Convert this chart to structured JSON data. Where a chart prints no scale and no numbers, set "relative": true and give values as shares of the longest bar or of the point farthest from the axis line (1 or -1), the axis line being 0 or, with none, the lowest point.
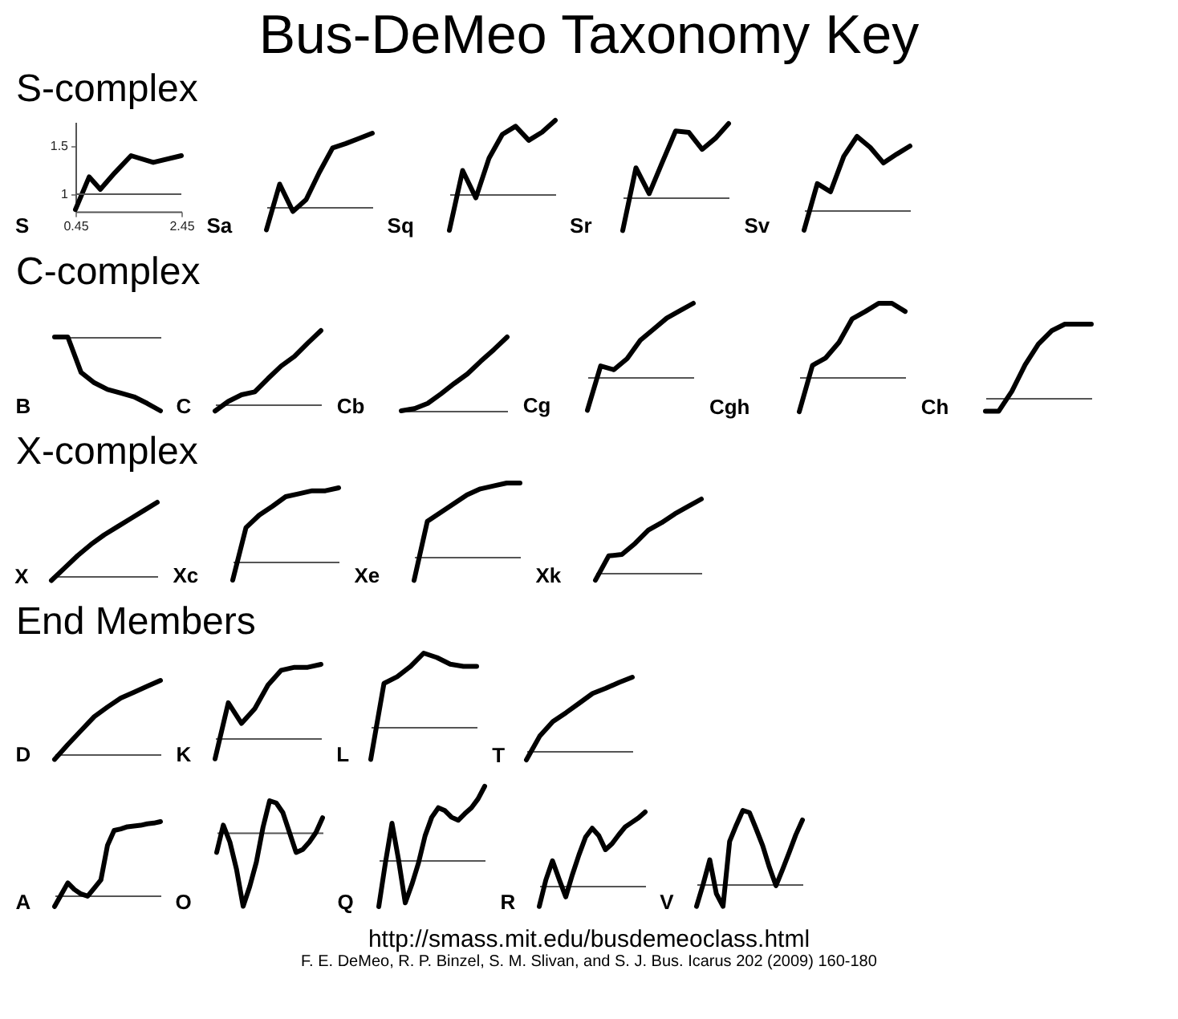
{
  "chart_data": [
    {
      "type": "other",
      "title": "Bus-DeMeo Taxonomy Key"
    },
    {
      "type": "other",
      "title": "S-complex"
    },
    {
      "type": "line",
      "title": "S",
      "xlim": [
        0.45,
        2.45
      ],
      "ylim": [
        0.82,
        1.75
      ],
      "xticks": [
        0.45,
        2.45
      ],
      "yticks": [
        1,
        1.5
      ],
      "ref_lines": [
        {
          "axis": "y",
          "value": 1
        }
      ],
      "series": [
        {
          "color": "#000000",
          "x": [
            0.45,
            0.71,
            0.92,
            1.19,
            1.5,
            1.92,
            2.45
          ],
          "values": [
            0.84,
            1.18,
            1.05,
            1.22,
            1.4,
            1.33,
            1.4
          ]
        }
      ]
    },
    {
      "type": "line",
      "title": "Sa",
      "relative": true,
      "categories": [
        null,
        null,
        null,
        null,
        null,
        null,
        null,
        null,
        null
      ],
      "series": [
        {
          "color": "#000000",
          "values": [
            -0.31,
            0.31,
            -0.06,
            0.1,
            0.47,
            0.8,
            0.86,
            0.93,
            1
          ]
        }
      ]
    },
    {
      "type": "line",
      "title": "Sq",
      "relative": true,
      "categories": [
        null,
        null,
        null,
        null,
        null,
        null,
        null,
        null,
        null
      ],
      "series": [
        {
          "color": "#000000",
          "values": [
            -0.49,
            0.32,
            -0.05,
            0.49,
            0.81,
            0.92,
            0.73,
            0.84,
            1
          ]
        }
      ]
    },
    {
      "type": "line",
      "title": "Sr",
      "relative": true,
      "categories": [
        null,
        null,
        null,
        null,
        null,
        null,
        null,
        null,
        null
      ],
      "series": [
        {
          "color": "#000000",
          "values": [
            -0.45,
            0.4,
            0.05,
            0.48,
            0.9,
            0.88,
            0.65,
            0.8,
            1
          ]
        }
      ]
    },
    {
      "type": "line",
      "title": "Sv",
      "relative": true,
      "categories": [
        null,
        null,
        null,
        null,
        null,
        null,
        null,
        null,
        null
      ],
      "series": [
        {
          "color": "#000000",
          "values": [
            -0.27,
            0.36,
            0.25,
            0.73,
            1,
            0.85,
            0.64,
            0.76,
            0.87
          ]
        }
      ]
    },
    {
      "type": "other",
      "title": "C-complex"
    },
    {
      "type": "line",
      "title": "B",
      "relative": true,
      "categories": [
        null,
        null,
        null,
        null,
        null,
        null,
        null,
        null,
        null
      ],
      "series": [
        {
          "color": "#000000",
          "values": [
            0,
            0,
            -0.48,
            -0.62,
            -0.71,
            -0.76,
            -0.81,
            -0.9,
            -1
          ]
        }
      ]
    },
    {
      "type": "line",
      "title": "C",
      "relative": true,
      "categories": [
        null,
        null,
        null,
        null,
        null,
        null,
        null,
        null,
        null
      ],
      "series": [
        {
          "color": "#000000",
          "values": [
            -0.09,
            0.04,
            0.13,
            0.17,
            0.35,
            0.52,
            0.65,
            0.83,
            1
          ]
        }
      ]
    },
    {
      "type": "line",
      "title": "Cb",
      "relative": true,
      "categories": [
        null,
        null,
        null,
        null,
        null,
        null,
        null,
        null,
        null
      ],
      "series": [
        {
          "color": "#000000",
          "values": [
            0,
            0.03,
            0.1,
            0.23,
            0.37,
            0.5,
            0.67,
            0.83,
            1
          ]
        }
      ]
    },
    {
      "type": "line",
      "title": "Cg",
      "relative": true,
      "categories": [
        null,
        null,
        null,
        null,
        null,
        null,
        null,
        null,
        null
      ],
      "series": [
        {
          "color": "#000000",
          "values": [
            -0.45,
            0.15,
            0.1,
            0.25,
            0.5,
            0.65,
            0.8,
            0.9,
            1
          ]
        }
      ]
    },
    {
      "type": "line",
      "title": "Cgh",
      "relative": true,
      "categories": [
        null,
        null,
        null,
        null,
        null,
        null,
        null,
        null,
        null
      ],
      "series": [
        {
          "color": "#000000",
          "values": [
            -0.47,
            0.16,
            0.26,
            0.47,
            0.79,
            0.89,
            1,
            1,
            0.89
          ]
        }
      ]
    },
    {
      "type": "line",
      "title": "Ch",
      "relative": true,
      "categories": [
        null,
        null,
        null,
        null,
        null,
        null,
        null,
        null,
        null
      ],
      "series": [
        {
          "color": "#000000",
          "values": [
            -0.18,
            -0.18,
            0.09,
            0.45,
            0.73,
            0.91,
            1,
            1,
            1
          ]
        }
      ]
    },
    {
      "type": "other",
      "title": "X-complex"
    },
    {
      "type": "line",
      "title": "X",
      "relative": true,
      "categories": [
        null,
        null,
        null,
        null,
        null,
        null,
        null,
        null,
        null
      ],
      "series": [
        {
          "color": "#000000",
          "values": [
            -0.06,
            0.11,
            0.28,
            0.43,
            0.56,
            0.67,
            0.78,
            0.89,
            1
          ]
        }
      ]
    },
    {
      "type": "line",
      "title": "Xc",
      "relative": true,
      "categories": [
        null,
        null,
        null,
        null,
        null,
        null,
        null,
        null,
        null
      ],
      "series": [
        {
          "color": "#000000",
          "values": [
            -0.25,
            0.46,
            0.63,
            0.75,
            0.88,
            0.92,
            0.96,
            0.96,
            1
          ]
        }
      ]
    },
    {
      "type": "line",
      "title": "Xe",
      "relative": true,
      "categories": [
        null,
        null,
        null,
        null,
        null,
        null,
        null,
        null,
        null
      ],
      "series": [
        {
          "color": "#000000",
          "values": [
            -0.32,
            0.48,
            0.6,
            0.72,
            0.84,
            0.92,
            0.96,
            1,
            1
          ]
        }
      ]
    },
    {
      "type": "line",
      "title": "Xk",
      "relative": true,
      "categories": [
        null,
        null,
        null,
        null,
        null,
        null,
        null,
        null,
        null
      ],
      "series": [
        {
          "color": "#000000",
          "values": [
            -0.1,
            0.23,
            0.25,
            0.4,
            0.58,
            0.68,
            0.8,
            0.9,
            1
          ]
        }
      ]
    },
    {
      "type": "other",
      "title": "End Members"
    },
    {
      "type": "line",
      "title": "D",
      "relative": true,
      "categories": [
        null,
        null,
        null,
        null,
        null,
        null,
        null,
        null,
        null
      ],
      "series": [
        {
          "color": "#000000",
          "values": [
            -0.07,
            0.13,
            0.32,
            0.51,
            0.64,
            0.76,
            0.84,
            0.92,
            1
          ]
        }
      ]
    },
    {
      "type": "line",
      "title": "K",
      "relative": true,
      "categories": [
        null,
        null,
        null,
        null,
        null,
        null,
        null,
        null,
        null
      ],
      "series": [
        {
          "color": "#000000",
          "values": [
            -0.28,
            0.48,
            0.2,
            0.4,
            0.72,
            0.92,
            0.96,
            0.96,
            1
          ]
        }
      ]
    },
    {
      "type": "line",
      "title": "L",
      "relative": true,
      "categories": [
        null,
        null,
        null,
        null,
        null,
        null,
        null,
        null,
        null
      ],
      "series": [
        {
          "color": "#000000",
          "values": [
            -0.44,
            0.59,
            0.68,
            0.82,
            1,
            0.94,
            0.85,
            0.82,
            0.82
          ]
        }
      ]
    },
    {
      "type": "line",
      "title": "T",
      "relative": true,
      "categories": [
        null,
        null,
        null,
        null,
        null,
        null,
        null,
        null,
        null
      ],
      "series": [
        {
          "color": "#000000",
          "values": [
            -0.12,
            0.2,
            0.4,
            0.52,
            0.65,
            0.78,
            0.85,
            0.93,
            1
          ]
        }
      ]
    },
    {
      "type": "other"
    },
    {
      "type": "line",
      "title": "A",
      "relative": true,
      "categories": [
        null,
        null,
        null,
        null,
        null,
        null,
        null,
        null,
        null,
        null,
        null,
        null,
        null,
        null,
        null,
        null,
        null
      ],
      "series": [
        {
          "color": "#000000",
          "values": [
            -0.15,
            0.01,
            0.17,
            0.08,
            0.02,
            -0.01,
            0.1,
            0.21,
            0.68,
            0.88,
            0.9,
            0.93,
            0.94,
            0.95,
            0.97,
            0.98,
            1
          ]
        }
      ]
    },
    {
      "type": "line",
      "title": "O",
      "relative": true,
      "categories": [
        null,
        null,
        null,
        null,
        null,
        null,
        null,
        null,
        null,
        null,
        null,
        null,
        null,
        null,
        null,
        null,
        null
      ],
      "series": [
        {
          "color": "#000000",
          "values": [
            -0.27,
            0.1,
            -0.13,
            -0.5,
            -1,
            -0.73,
            -0.4,
            0.07,
            0.43,
            0.4,
            0.27,
            0,
            -0.27,
            -0.23,
            -0.13,
            0,
            0.2
          ]
        }
      ]
    },
    {
      "type": "line",
      "title": "Q",
      "relative": true,
      "categories": [
        null,
        null,
        null,
        null,
        null,
        null,
        null,
        null,
        null,
        null,
        null,
        null,
        null,
        null,
        null,
        null,
        null
      ],
      "series": [
        {
          "color": "#000000",
          "values": [
            -0.63,
            -0.04,
            0.5,
            0,
            -0.58,
            -0.33,
            -0.04,
            0.33,
            0.58,
            0.71,
            0.67,
            0.58,
            0.54,
            0.63,
            0.71,
            0.83,
            1
          ]
        }
      ]
    },
    {
      "type": "line",
      "title": "R",
      "relative": true,
      "categories": [
        null,
        null,
        null,
        null,
        null,
        null,
        null,
        null,
        null,
        null,
        null,
        null,
        null,
        null,
        null,
        null,
        null
      ],
      "series": [
        {
          "color": "#000000",
          "values": [
            -0.28,
            0.08,
            0.34,
            0.09,
            -0.15,
            0.15,
            0.42,
            0.66,
            0.78,
            0.68,
            0.49,
            0.57,
            0.69,
            0.8,
            0.86,
            0.92,
            1
          ]
        }
      ]
    },
    {
      "type": "line",
      "title": "V",
      "relative": true,
      "categories": [
        null,
        null,
        null,
        null,
        null,
        null,
        null,
        null,
        null,
        null,
        null,
        null,
        null,
        null,
        null,
        null,
        null
      ],
      "series": [
        {
          "color": "#000000",
          "values": [
            -0.3,
            0,
            0.33,
            -0.13,
            -0.3,
            0.58,
            0.8,
            1,
            0.97,
            0.75,
            0.52,
            0.23,
            -0.02,
            0.2,
            0.43,
            0.67,
            0.87
          ]
        }
      ]
    },
    {
      "type": "other",
      "annotations": [
        "http://smass.mit.edu/busdemeoclass.html",
        "F. E. DeMeo, R. P. Binzel, S. M. Slivan, and S. J. Bus. Icarus 202 (2009) 160-180"
      ]
    }
  ]
}
